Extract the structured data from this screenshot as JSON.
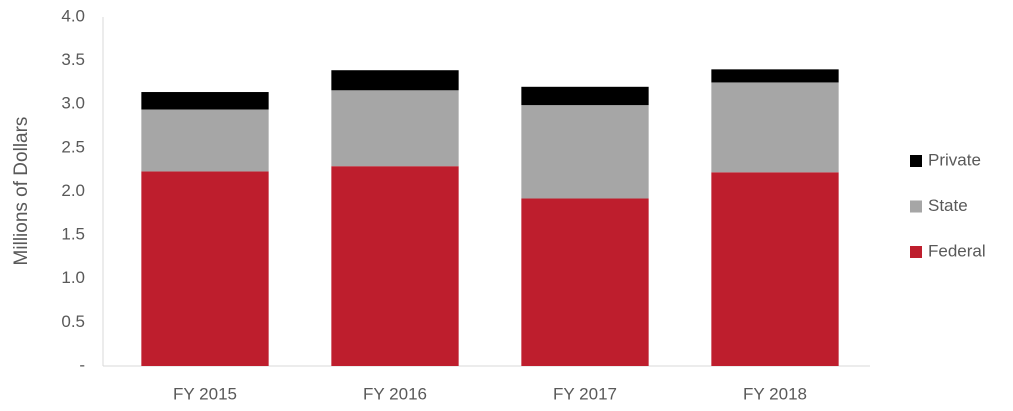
{
  "chart_data": {
    "type": "stacked-bar",
    "y_label": "Millions of Dollars",
    "categories": [
      "FY 2015",
      "FY 2016",
      "FY 2017",
      "FY 2018"
    ],
    "series": [
      {
        "name": "Federal",
        "color": "#be1e2d",
        "values": [
          2.23,
          2.29,
          1.92,
          2.22
        ]
      },
      {
        "name": "State",
        "color": "#a6a6a6",
        "values": [
          0.71,
          0.87,
          1.07,
          1.03
        ]
      },
      {
        "name": "Private",
        "color": "#000000",
        "values": [
          0.2,
          0.23,
          0.21,
          0.15
        ]
      }
    ],
    "ylim": [
      0,
      4
    ],
    "yticks": [
      {
        "value": 0,
        "label": "-"
      },
      0.5,
      {
        "value": 1,
        "label": "1.0"
      },
      1.5,
      {
        "value": 2,
        "label": "2.0"
      },
      2.5,
      {
        "value": 3,
        "label": "3.0"
      },
      3.5,
      {
        "value": 4,
        "label": "4.0"
      }
    ],
    "legend": "right"
  }
}
